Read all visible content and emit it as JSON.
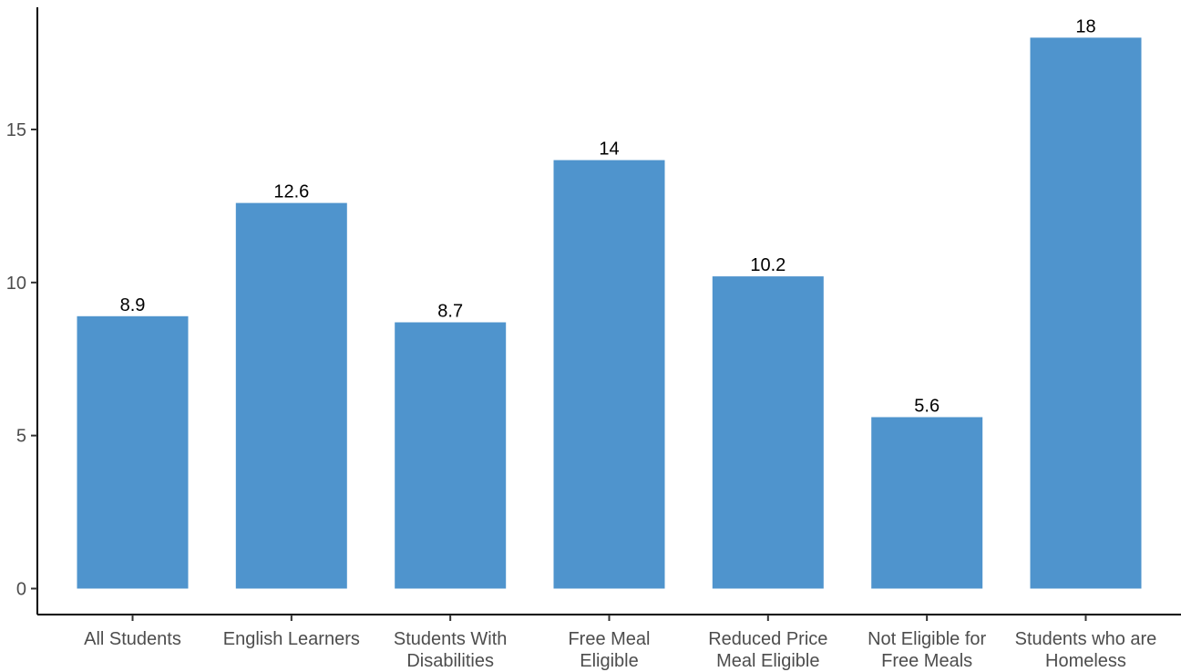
{
  "chart_data": {
    "type": "bar",
    "title": "",
    "xlabel": "",
    "ylabel": "",
    "categories": [
      [
        "All Students"
      ],
      [
        "English Learners"
      ],
      [
        "Students With",
        "Disabilities"
      ],
      [
        "Free Meal",
        "Eligible"
      ],
      [
        "Reduced Price",
        "Meal Eligible"
      ],
      [
        "Not Eligible for",
        "Free Meals"
      ],
      [
        "Students who are",
        "Homeless"
      ]
    ],
    "values": [
      8.9,
      12.6,
      8.7,
      14,
      10.2,
      5.6,
      18
    ],
    "data_labels": [
      "8.9",
      "12.6",
      "8.7",
      "14",
      "10.2",
      "5.6",
      "18"
    ],
    "yticks": [
      0,
      5,
      10,
      15
    ],
    "ytick_labels": [
      "0",
      "5",
      "10",
      "15"
    ],
    "ylim": [
      -0.75,
      18.8
    ],
    "grid": false,
    "legend": "none",
    "bar_color": "#4f94cd"
  }
}
